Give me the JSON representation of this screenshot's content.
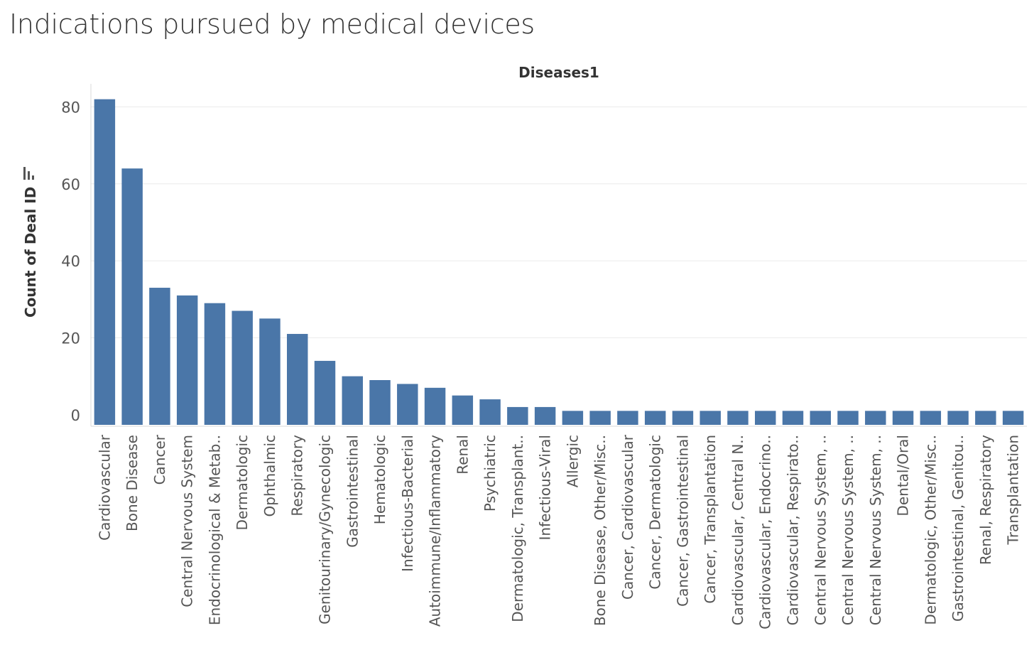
{
  "page": {
    "title": "Indications pursued by medical devices"
  },
  "chart_data": {
    "type": "bar",
    "header": "Diseases1",
    "ylabel": "Count of Deal ID",
    "xlabel": "",
    "ylim": [
      -3,
      86
    ],
    "yticks": [
      0,
      20,
      40,
      60,
      80
    ],
    "grid": true,
    "bar_color": "#4a76a8",
    "sort_icon": "sort-descending-icon",
    "categories": [
      "Cardiovascular",
      "Bone Disease",
      "Cancer",
      "Central Nervous System",
      "Endocrinological & Metab..",
      "Dermatologic",
      "Ophthalmic",
      "Respiratory",
      "Genitourinary/Gynecologic",
      "Gastrointestinal",
      "Hematologic",
      "Infectious-Bacterial",
      "Autoimmune/Inflammatory",
      "Renal",
      "Psychiatric",
      "Dermatologic, Transplant..",
      "Infectious-Viral",
      "Allergic",
      "Bone Disease, Other/Misc..",
      "Cancer, Cardiovascular",
      "Cancer, Dermatologic",
      "Cancer, Gastrointestinal",
      "Cancer, Transplantation",
      "Cardiovascular, Central N..",
      "Cardiovascular, Endocrino..",
      "Cardiovascular, Respirato..",
      "Central Nervous System, ..",
      "Central Nervous System, ..",
      "Central Nervous System, ..",
      "Dental/Oral",
      "Dermatologic, Other/Misc..",
      "Gastrointestinal, Genitou..",
      "Renal, Respiratory",
      "Transplantation"
    ],
    "values": [
      82,
      64,
      33,
      31,
      29,
      27,
      25,
      21,
      14,
      10,
      9,
      8,
      7,
      5,
      4,
      2,
      2,
      1,
      1,
      1,
      1,
      1,
      1,
      1,
      1,
      1,
      1,
      1,
      1,
      1,
      1,
      1,
      1,
      1
    ]
  }
}
